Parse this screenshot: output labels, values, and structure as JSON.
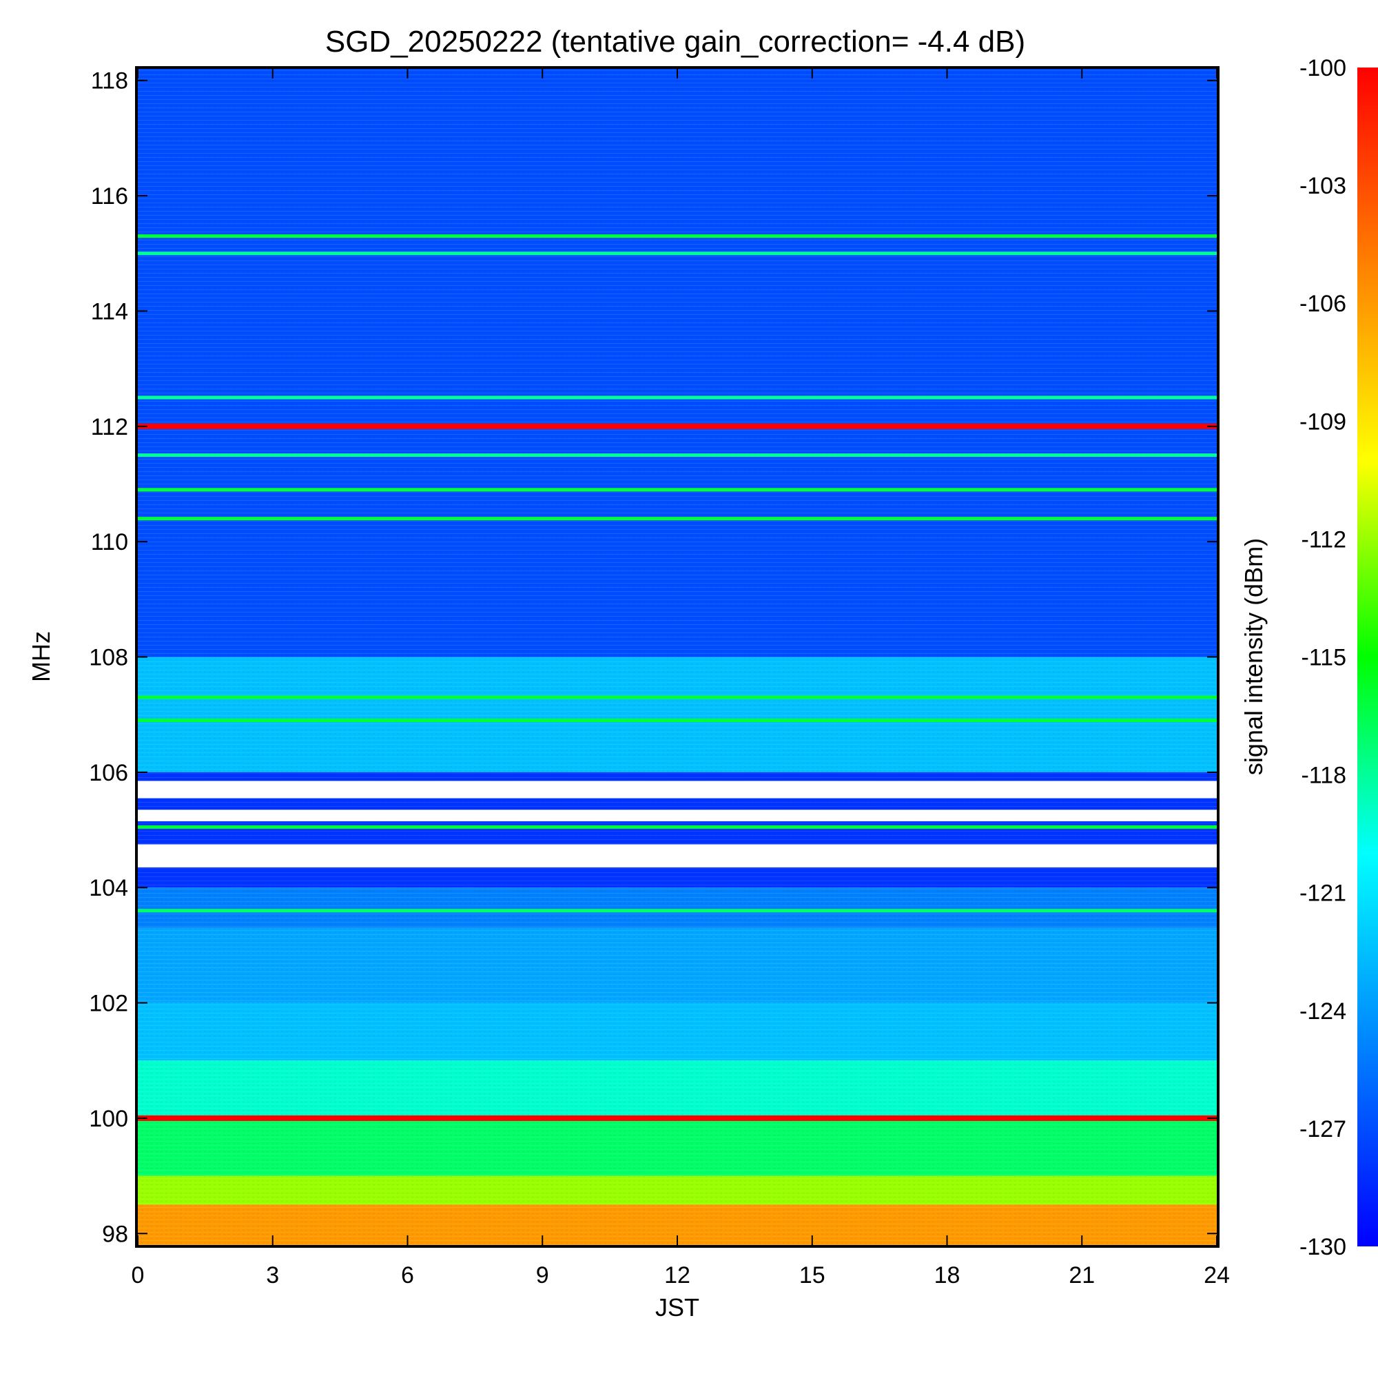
{
  "chart_data": {
    "type": "heatmap",
    "title": "SGD_20250222 (tentative gain_correction= -4.4 dB)",
    "xlabel": "JST",
    "ylabel": "MHz",
    "colorbar_label": "signal intensity (dBm)",
    "xlim": [
      0,
      24
    ],
    "ylim": [
      97.8,
      118.2
    ],
    "x_ticks": [
      0,
      3,
      6,
      9,
      12,
      15,
      18,
      21,
      24
    ],
    "x_tick_labels": [
      "0",
      "3",
      "6",
      "9",
      "12",
      "15",
      "18",
      "21",
      "24"
    ],
    "y_ticks": [
      98,
      100,
      102,
      104,
      106,
      108,
      110,
      112,
      114,
      116,
      118
    ],
    "y_tick_labels": [
      "98",
      "100",
      "102",
      "104",
      "106",
      "108",
      "110",
      "112",
      "114",
      "116",
      "118"
    ],
    "colorbar_range": [
      -130,
      -100
    ],
    "colorbar_ticks": [
      -100,
      -103,
      -106,
      -109,
      -112,
      -115,
      -118,
      -121,
      -124,
      -127,
      -130
    ],
    "colorbar_tick_labels": [
      "-100",
      "-103",
      "-106",
      "-109",
      "-112",
      "-115",
      "-118",
      "-121",
      "-124",
      "-127",
      "-130"
    ],
    "colormap": [
      "#0000ff",
      "#0080ff",
      "#00ffff",
      "#00ff00",
      "#ffff00",
      "#ff8000",
      "#ff0000"
    ],
    "background_bands": [
      {
        "f_from": 108.0,
        "f_to": 118.2,
        "dbm": -127
      },
      {
        "f_from": 106.0,
        "f_to": 108.0,
        "dbm": -122.5
      },
      {
        "f_from": 104.0,
        "f_to": 106.0,
        "dbm": -128
      },
      {
        "f_from": 103.3,
        "f_to": 104.0,
        "dbm": -125
      },
      {
        "f_from": 102.0,
        "f_to": 103.3,
        "dbm": -123.5
      },
      {
        "f_from": 101.0,
        "f_to": 102.0,
        "dbm": -122.5
      },
      {
        "f_from": 100.0,
        "f_to": 101.0,
        "dbm": -119
      },
      {
        "f_from": 99.0,
        "f_to": 100.0,
        "dbm": -117
      },
      {
        "f_from": 98.5,
        "f_to": 99.0,
        "dbm": -112
      },
      {
        "f_from": 97.8,
        "f_to": 98.5,
        "dbm": -106
      }
    ],
    "strong_lines": [
      {
        "freq_mhz": 112.0,
        "dbm": -100
      },
      {
        "freq_mhz": 100.0,
        "dbm": -100
      },
      {
        "freq_mhz": 115.3,
        "dbm": -116
      },
      {
        "freq_mhz": 115.0,
        "dbm": -118
      },
      {
        "freq_mhz": 112.5,
        "dbm": -118
      },
      {
        "freq_mhz": 111.5,
        "dbm": -118
      },
      {
        "freq_mhz": 110.9,
        "dbm": -116
      },
      {
        "freq_mhz": 110.4,
        "dbm": -116
      },
      {
        "freq_mhz": 107.3,
        "dbm": -116
      },
      {
        "freq_mhz": 106.9,
        "dbm": -116
      },
      {
        "freq_mhz": 105.05,
        "dbm": -116
      },
      {
        "freq_mhz": 103.6,
        "dbm": -117
      }
    ],
    "gap_bands": [
      {
        "f_from": 105.55,
        "f_to": 105.85
      },
      {
        "f_from": 105.15,
        "f_to": 105.35
      },
      {
        "f_from": 104.35,
        "f_to": 104.75
      }
    ]
  }
}
